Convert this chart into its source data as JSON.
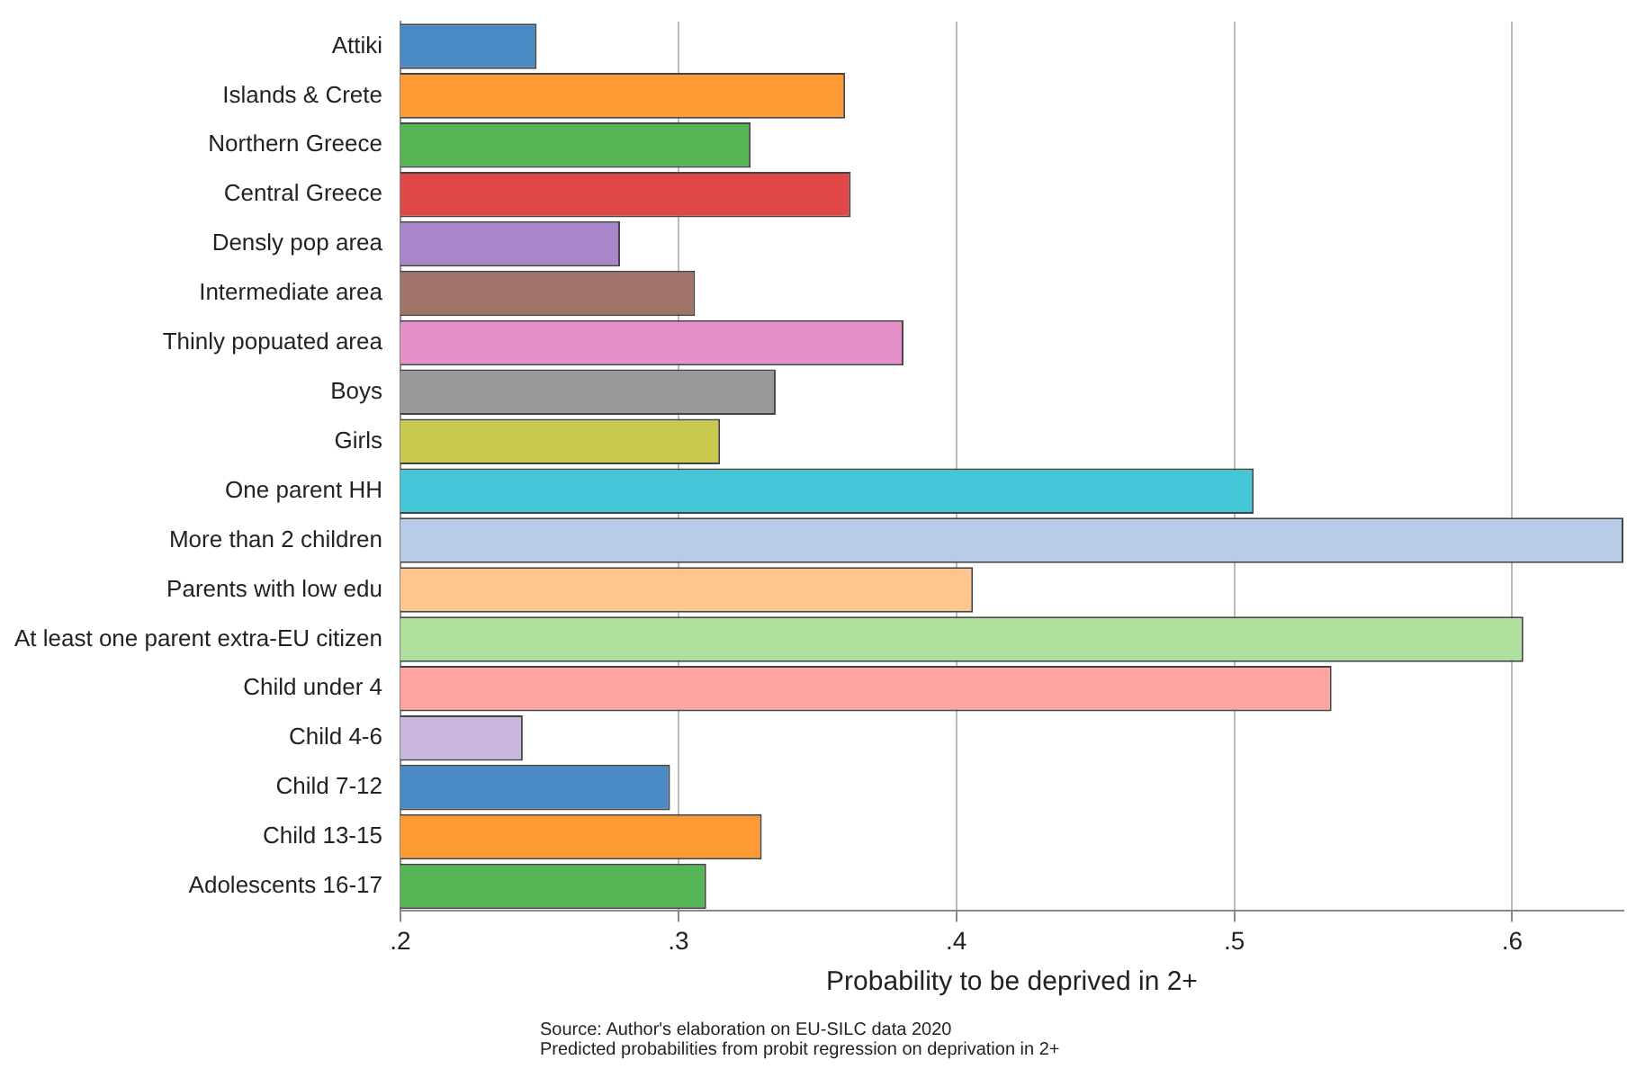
{
  "chart_data": {
    "type": "bar",
    "orientation": "horizontal",
    "categories": [
      "Attiki",
      "Islands & Crete",
      "Northern Greece",
      "Central Greece",
      "Densly pop area",
      "Intermediate area",
      "Thinly popuated area",
      "Boys",
      "Girls",
      "One parent HH",
      "More than 2 children",
      "Parents with low edu",
      "At least one parent extra-EU citizen",
      "Child under 4",
      "Child 4-6",
      "Child 7-12",
      "Child 13-15",
      "Adolescents 16-17"
    ],
    "values": [
      0.249,
      0.36,
      0.326,
      0.362,
      0.279,
      0.306,
      0.381,
      0.335,
      0.315,
      0.507,
      0.64,
      0.406,
      0.604,
      0.535,
      0.244,
      0.297,
      0.33,
      0.31
    ],
    "colors": [
      "#4a8ac4",
      "#ff9933",
      "#55b555",
      "#e04848",
      "#a985c9",
      "#a07268",
      "#e68fc9",
      "#999999",
      "#c9c94f",
      "#44c8d8",
      "#b8cce8",
      "#ffc58f",
      "#aee09b",
      "#ffa3a3",
      "#c8b6dc",
      "#4a8ac4",
      "#ff9933",
      "#55b555"
    ],
    "xlim": [
      0.2,
      0.64
    ],
    "xticks": [
      {
        "value": 0.2,
        "label": ".2"
      },
      {
        "value": 0.3,
        "label": ".3"
      },
      {
        "value": 0.4,
        "label": ".4"
      },
      {
        "value": 0.5,
        "label": ".5"
      },
      {
        "value": 0.6,
        "label": ".6"
      }
    ],
    "xlabel": "Probability to be deprived in 2+",
    "annotations": [
      "Source: Author's elaboration on EU-SILC data 2020",
      "Predicted probabilities from probit regression on deprivation in 2+"
    ],
    "grid": "x",
    "legend": false
  }
}
